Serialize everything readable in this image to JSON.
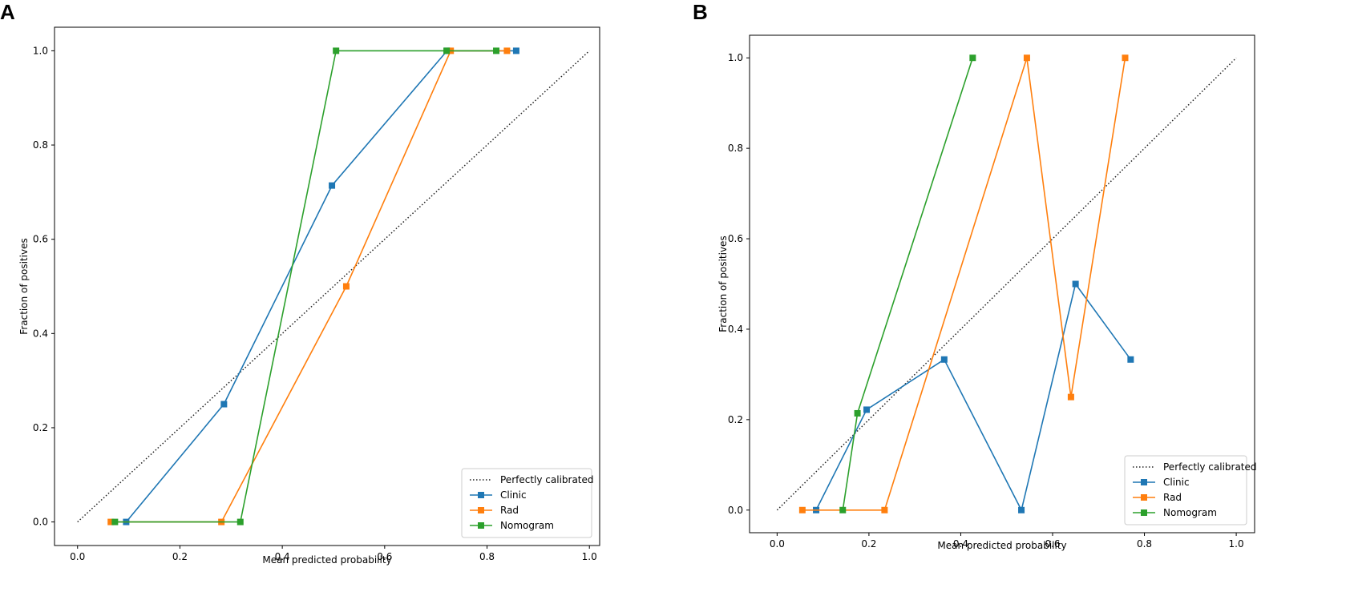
{
  "panels": [
    {
      "letter": "A",
      "chart_data": {
        "type": "line",
        "title": "",
        "xlabel": "Mean predicted probability",
        "ylabel": "Fraction of positives",
        "xlim": [
          -0.045,
          1.02
        ],
        "ylim": [
          -0.05,
          1.05
        ],
        "xticks": [
          "0.0",
          "0.2",
          "0.4",
          "0.6",
          "0.8",
          "1.0"
        ],
        "yticks": [
          "0.0",
          "0.2",
          "0.4",
          "0.6",
          "0.8",
          "1.0"
        ],
        "grid": false,
        "legend_position": "bottom-right",
        "reference": {
          "name": "Perfectly calibrated",
          "x": [
            0,
            1
          ],
          "y": [
            0,
            1
          ],
          "color": "#222222",
          "style": "dotted"
        },
        "series": [
          {
            "name": "Clinic",
            "color": "#1f77b4",
            "x": [
              0.095,
              0.286,
              0.497,
              0.722,
              0.857
            ],
            "y": [
              0.0,
              0.25,
              0.714,
              1.0,
              1.0
            ]
          },
          {
            "name": "Rad",
            "color": "#ff7f0e",
            "x": [
              0.065,
              0.281,
              0.525,
              0.729,
              0.839
            ],
            "y": [
              0.0,
              0.0,
              0.5,
              1.0,
              1.0
            ]
          },
          {
            "name": "Nomogram",
            "color": "#2ca02c",
            "x": [
              0.073,
              0.318,
              0.505,
              0.721,
              0.818
            ],
            "y": [
              0.0,
              0.0,
              1.0,
              1.0,
              1.0
            ]
          }
        ]
      }
    },
    {
      "letter": "B",
      "chart_data": {
        "type": "line",
        "title": "",
        "xlabel": "Mean predicted probability",
        "ylabel": "Fraction of positives",
        "xlim": [
          -0.06,
          1.04
        ],
        "ylim": [
          -0.05,
          1.05
        ],
        "xticks": [
          "0.0",
          "0.2",
          "0.4",
          "0.6",
          "0.8",
          "1.0"
        ],
        "yticks": [
          "0.0",
          "0.2",
          "0.4",
          "0.6",
          "0.8",
          "1.0"
        ],
        "grid": false,
        "legend_position": "bottom-right",
        "reference": {
          "name": "Perfectly calibrated",
          "x": [
            0,
            1
          ],
          "y": [
            0,
            1
          ],
          "color": "#222222",
          "style": "dotted"
        },
        "series": [
          {
            "name": "Clinic",
            "color": "#1f77b4",
            "x": [
              0.085,
              0.195,
              0.364,
              0.532,
              0.65,
              0.77
            ],
            "y": [
              0.0,
              0.222,
              0.333,
              0.0,
              0.5,
              0.333
            ]
          },
          {
            "name": "Rad",
            "color": "#ff7f0e",
            "x": [
              0.055,
              0.234,
              0.544,
              0.64,
              0.758
            ],
            "y": [
              0.0,
              0.0,
              1.0,
              0.25,
              1.0
            ]
          },
          {
            "name": "Nomogram",
            "color": "#2ca02c",
            "x": [
              0.143,
              0.175,
              0.426
            ],
            "y": [
              0.0,
              0.214,
              1.0
            ]
          }
        ]
      }
    }
  ]
}
